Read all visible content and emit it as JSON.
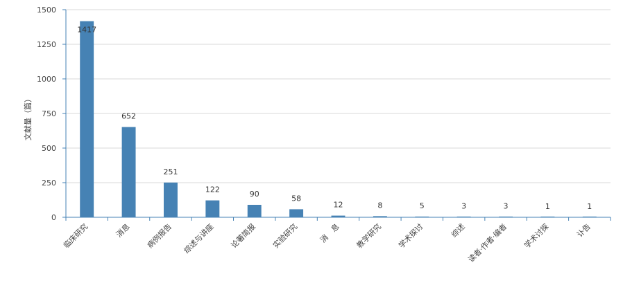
{
  "chart_data": {
    "type": "bar",
    "title": "",
    "xlabel": "",
    "ylabel": "文献量（篇）",
    "ylim": [
      0,
      1500
    ],
    "yticks": [
      0,
      250,
      500,
      750,
      1000,
      1250,
      1500
    ],
    "grid": true,
    "categories": [
      "临床研究",
      "消息",
      "病例报告",
      "综述与讲座",
      "论著简报",
      "实验研究",
      "消　息",
      "教学研究",
      "学术探讨",
      "综述",
      "读者·作者·编者",
      "学术讨探",
      "讣告"
    ],
    "values": [
      1417,
      652,
      251,
      122,
      90,
      58,
      12,
      8,
      5,
      3,
      3,
      1,
      1
    ],
    "colors": {
      "bar": "#4682b4",
      "axis": "#4682b4",
      "grid": "#d8d8d8"
    }
  }
}
